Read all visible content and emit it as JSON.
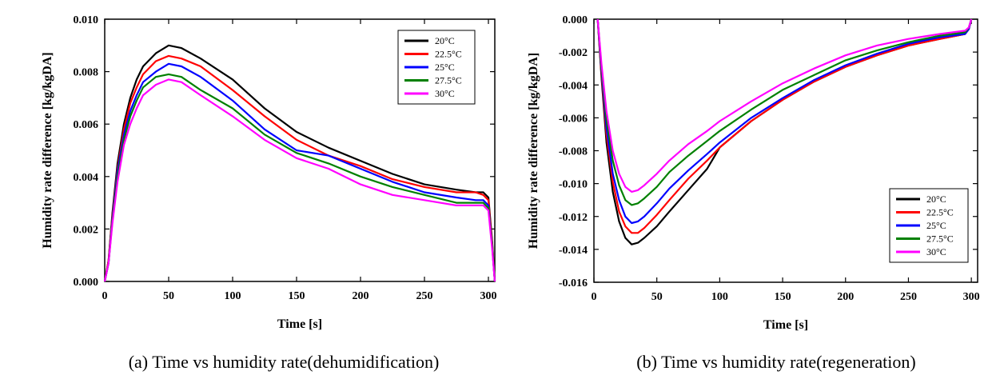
{
  "chart_data": [
    {
      "type": "line",
      "caption": "(a)  Time  vs  humidity  rate(dehumidification)",
      "xlabel": "Time [s]",
      "ylabel": "Humidity rate difference [kg/kgDA]",
      "xlim": [
        0,
        305
      ],
      "ylim": [
        0.0,
        0.01
      ],
      "xticks": [
        "0",
        "50",
        "100",
        "150",
        "200",
        "250",
        "300"
      ],
      "yticks": [
        "0.000",
        "0.002",
        "0.004",
        "0.006",
        "0.008",
        "0.010"
      ],
      "legend_position": "top-right",
      "x": [
        0,
        3,
        6,
        10,
        15,
        20,
        25,
        30,
        40,
        50,
        60,
        75,
        100,
        125,
        150,
        175,
        200,
        225,
        250,
        275,
        290,
        296,
        300,
        303,
        305
      ],
      "series": [
        {
          "name": "20°C",
          "color": "#000000",
          "values": [
            0.0,
            0.0008,
            0.0026,
            0.0045,
            0.006,
            0.007,
            0.0077,
            0.0082,
            0.0087,
            0.009,
            0.0089,
            0.0085,
            0.0077,
            0.0066,
            0.0057,
            0.0051,
            0.0046,
            0.0041,
            0.0037,
            0.0035,
            0.0034,
            0.0034,
            0.0032,
            0.0015,
            0.0
          ]
        },
        {
          "name": "22.5°C",
          "color": "#ff0000",
          "values": [
            0.0,
            0.0008,
            0.0025,
            0.0043,
            0.0058,
            0.0068,
            0.0074,
            0.0079,
            0.0084,
            0.0086,
            0.0085,
            0.0082,
            0.0073,
            0.0063,
            0.0054,
            0.0048,
            0.0044,
            0.0039,
            0.0036,
            0.0034,
            0.0034,
            0.0033,
            0.0031,
            0.0014,
            0.0
          ]
        },
        {
          "name": "25°C",
          "color": "#0000ff",
          "values": [
            0.0,
            0.0007,
            0.0024,
            0.0042,
            0.0056,
            0.0065,
            0.0071,
            0.0076,
            0.008,
            0.0083,
            0.0082,
            0.0078,
            0.0069,
            0.0058,
            0.005,
            0.0048,
            0.0043,
            0.0038,
            0.0034,
            0.0032,
            0.0031,
            0.0031,
            0.0029,
            0.0013,
            0.0
          ]
        },
        {
          "name": "27.5°C",
          "color": "#008000",
          "values": [
            0.0,
            0.0007,
            0.0023,
            0.004,
            0.0054,
            0.0063,
            0.0069,
            0.0074,
            0.0078,
            0.0079,
            0.0078,
            0.0073,
            0.0066,
            0.0056,
            0.0049,
            0.0045,
            0.004,
            0.0036,
            0.0033,
            0.003,
            0.003,
            0.003,
            0.0028,
            0.0013,
            0.0
          ]
        },
        {
          "name": "30°C",
          "color": "#ff00ff",
          "values": [
            0.0,
            0.0007,
            0.0022,
            0.0038,
            0.0052,
            0.006,
            0.0066,
            0.0071,
            0.0075,
            0.0077,
            0.0076,
            0.0071,
            0.0063,
            0.0054,
            0.0047,
            0.0043,
            0.0037,
            0.0033,
            0.0031,
            0.0029,
            0.0029,
            0.0029,
            0.0027,
            0.0012,
            0.0
          ]
        }
      ]
    },
    {
      "type": "line",
      "caption": "(b)  Time  vs  humidity  rate(regeneration)",
      "xlabel": "Time [s]",
      "ylabel": "Humidity rate difference [kg/kgDA]",
      "xlim": [
        0,
        305
      ],
      "ylim": [
        -0.016,
        0.0
      ],
      "xticks": [
        "0",
        "50",
        "100",
        "150",
        "200",
        "250",
        "300"
      ],
      "yticks": [
        "0.000",
        "-0.002",
        "-0.004",
        "-0.006",
        "-0.008",
        "-0.010",
        "-0.012",
        "-0.014",
        "-0.016"
      ],
      "legend_position": "bottom-right",
      "x": [
        3,
        6,
        10,
        15,
        20,
        25,
        30,
        35,
        40,
        50,
        60,
        75,
        90,
        100,
        125,
        150,
        175,
        200,
        225,
        250,
        275,
        295,
        298,
        300
      ],
      "series": [
        {
          "name": "20°C",
          "color": "#000000",
          "values": [
            0.0,
            -0.0035,
            -0.0075,
            -0.0105,
            -0.0123,
            -0.0133,
            -0.0137,
            -0.0136,
            -0.0133,
            -0.0126,
            -0.0117,
            -0.0104,
            -0.0091,
            -0.0078,
            -0.0062,
            -0.0049,
            -0.0038,
            -0.0029,
            -0.0022,
            -0.0016,
            -0.0012,
            -0.0009,
            -0.0006,
            0.0
          ]
        },
        {
          "name": "22.5°C",
          "color": "#ff0000",
          "values": [
            0.0,
            -0.0033,
            -0.007,
            -0.0099,
            -0.0117,
            -0.0126,
            -0.013,
            -0.013,
            -0.0127,
            -0.0119,
            -0.011,
            -0.0097,
            -0.0086,
            -0.0078,
            -0.0062,
            -0.0049,
            -0.0038,
            -0.0029,
            -0.0022,
            -0.0016,
            -0.0012,
            -0.0009,
            -0.0006,
            0.0
          ]
        },
        {
          "name": "25°C",
          "color": "#0000ff",
          "values": [
            0.0,
            -0.0031,
            -0.0066,
            -0.0094,
            -0.011,
            -0.012,
            -0.0124,
            -0.0123,
            -0.012,
            -0.0112,
            -0.0103,
            -0.0092,
            -0.0082,
            -0.0075,
            -0.006,
            -0.0048,
            -0.0037,
            -0.0028,
            -0.0021,
            -0.0015,
            -0.0011,
            -0.0009,
            -0.0006,
            0.0
          ]
        },
        {
          "name": "27.5°C",
          "color": "#008000",
          "values": [
            0.0,
            -0.0029,
            -0.0061,
            -0.0086,
            -0.0101,
            -0.011,
            -0.0113,
            -0.0112,
            -0.0109,
            -0.0102,
            -0.0093,
            -0.0083,
            -0.0074,
            -0.0068,
            -0.0055,
            -0.0043,
            -0.0034,
            -0.0025,
            -0.0019,
            -0.0014,
            -0.001,
            -0.0008,
            -0.0005,
            0.0
          ]
        },
        {
          "name": "30°C",
          "color": "#ff00ff",
          "values": [
            0.0,
            -0.0027,
            -0.0056,
            -0.008,
            -0.0094,
            -0.0102,
            -0.0105,
            -0.0104,
            -0.0101,
            -0.0094,
            -0.0086,
            -0.0076,
            -0.0068,
            -0.0062,
            -0.005,
            -0.0039,
            -0.003,
            -0.0022,
            -0.0016,
            -0.0012,
            -0.0009,
            -0.0007,
            -0.0005,
            0.0
          ]
        }
      ]
    }
  ]
}
